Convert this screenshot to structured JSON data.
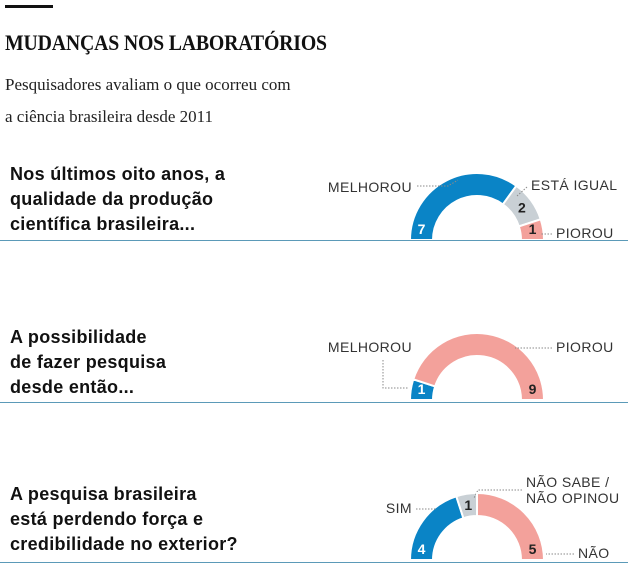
{
  "header": {
    "title": "MUDANÇAS NOS LABORATÓRIOS",
    "subtitle_line1": "Pesquisadores avaliam o que ocorreu com",
    "subtitle_line2": "a ciência brasileira desde 2011"
  },
  "colors": {
    "blue": "#0a84c6",
    "gray": "#c9d0d5",
    "pink": "#f3a19b"
  },
  "chart_data": [
    {
      "type": "pie",
      "variant": "half-donut",
      "question_lines": [
        "Nos últimos oito anos, a",
        "qualidade da produção",
        "científica brasileira..."
      ],
      "slices": [
        {
          "label": "MELHOROU",
          "value": 7,
          "color": "#0a84c6"
        },
        {
          "label": "ESTÁ IGUAL",
          "value": 2,
          "color": "#c9d0d5"
        },
        {
          "label": "PIOROU",
          "value": 1,
          "color": "#f3a19b"
        }
      ]
    },
    {
      "type": "pie",
      "variant": "half-donut",
      "question_lines": [
        "A possibilidade",
        "de fazer pesquisa",
        "desde então..."
      ],
      "slices": [
        {
          "label": "MELHOROU",
          "value": 1,
          "color": "#0a84c6"
        },
        {
          "label": "PIOROU",
          "value": 9,
          "color": "#f3a19b"
        }
      ]
    },
    {
      "type": "pie",
      "variant": "half-donut",
      "question_lines": [
        "A pesquisa brasileira",
        "está perdendo força e",
        "credibilidade no exterior?"
      ],
      "slices": [
        {
          "label": "SIM",
          "value": 4,
          "color": "#0a84c6"
        },
        {
          "label": "NÃO SABE / NÃO OPINOU",
          "label_lines": [
            "NÃO SABE /",
            "NÃO OPINOU"
          ],
          "value": 1,
          "color": "#c9d0d5"
        },
        {
          "label": "NÃO",
          "value": 5,
          "color": "#f3a19b"
        }
      ]
    }
  ]
}
